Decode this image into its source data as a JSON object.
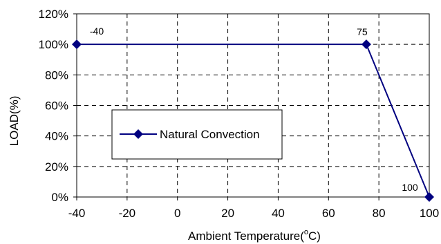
{
  "chart_data": {
    "type": "line",
    "xlabel": "Ambient Temperature(",
    "xlabel_degree": "o",
    "xlabel_unit": "C)",
    "ylabel": "LOAD(%)",
    "xlim": [
      -40,
      100
    ],
    "ylim": [
      0,
      120
    ],
    "x_ticks": [
      "-40",
      "-20",
      "0",
      "20",
      "40",
      "60",
      "80",
      "100"
    ],
    "x_tick_values": [
      -40,
      -20,
      0,
      20,
      40,
      60,
      80,
      100
    ],
    "y_ticks": [
      "0%",
      "20%",
      "40%",
      "60%",
      "80%",
      "100%",
      "120%"
    ],
    "y_tick_values": [
      0,
      20,
      40,
      60,
      80,
      100,
      120
    ],
    "grid": true,
    "legend_position": "center-left",
    "series": [
      {
        "name": "Natural Convection",
        "color": "#000080",
        "marker": "diamond",
        "x": [
          -40,
          75,
          100
        ],
        "y": [
          100,
          100,
          0
        ]
      }
    ],
    "annotations": [
      {
        "text": "-40",
        "x": -40,
        "y": 100
      },
      {
        "text": "75",
        "x": 75,
        "y": 100
      },
      {
        "text": "100",
        "x": 100,
        "y": 0
      }
    ]
  }
}
